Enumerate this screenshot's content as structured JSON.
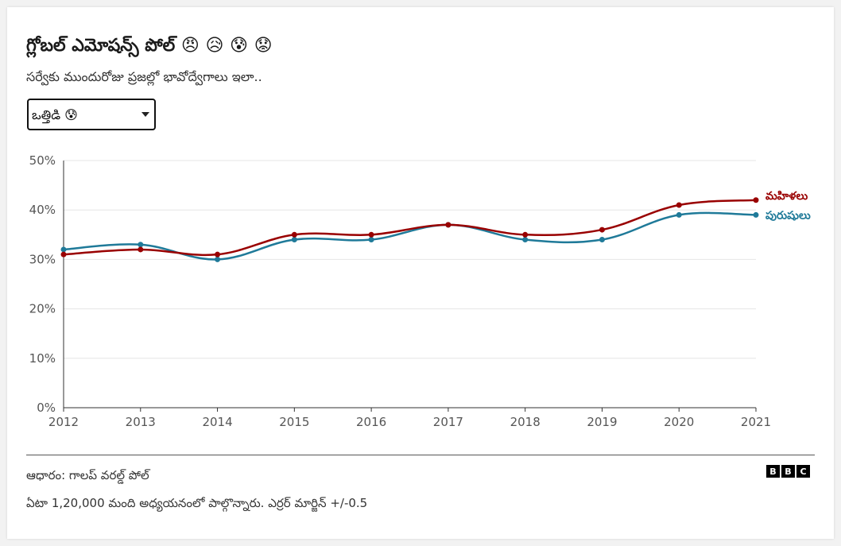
{
  "header": {
    "title": "గ్లోబల్ ఎమోషన్స్ పోల్ 😠 😥 😰 😟",
    "subtitle": "సర్వేకు ముందురోజు ప్రజల్లో భావోద్వేగాలు ఇలా.."
  },
  "selector": {
    "selected": "ఒత్తిడి 😰"
  },
  "footer": {
    "source": "ఆధారం: గాలప్ వరల్డ్ పోల్",
    "note": "ఏటా 1,20,000 మంది అధ్యయనంలో పాల్గొన్నారు. ఎర్రర్ మార్జిన్ +/-0.5",
    "logo_letters": [
      "B",
      "B",
      "C"
    ]
  },
  "chart_data": {
    "type": "line",
    "title": "",
    "xlabel": "",
    "ylabel": "",
    "x": [
      2012,
      2013,
      2014,
      2015,
      2016,
      2017,
      2018,
      2019,
      2020,
      2021
    ],
    "x_tick_labels": [
      "2012",
      "2013",
      "2014",
      "2015",
      "2016",
      "2017",
      "2018",
      "2019",
      "2020",
      "2021"
    ],
    "ylim": [
      0,
      50
    ],
    "y_ticks": [
      0,
      10,
      20,
      30,
      40,
      50
    ],
    "y_tick_labels": [
      "0%",
      "10%",
      "20%",
      "30%",
      "40%",
      "50%"
    ],
    "grid": true,
    "legend": "end-of-line labels",
    "series": [
      {
        "name": "పురుషులు",
        "color": "#1f7a99",
        "values": [
          32,
          33,
          30,
          34,
          34,
          37,
          34,
          34,
          39,
          39
        ]
      },
      {
        "name": "మహిళలు",
        "color": "#990000",
        "values": [
          31,
          32,
          31,
          35,
          35,
          37,
          35,
          36,
          41,
          42
        ]
      }
    ]
  }
}
